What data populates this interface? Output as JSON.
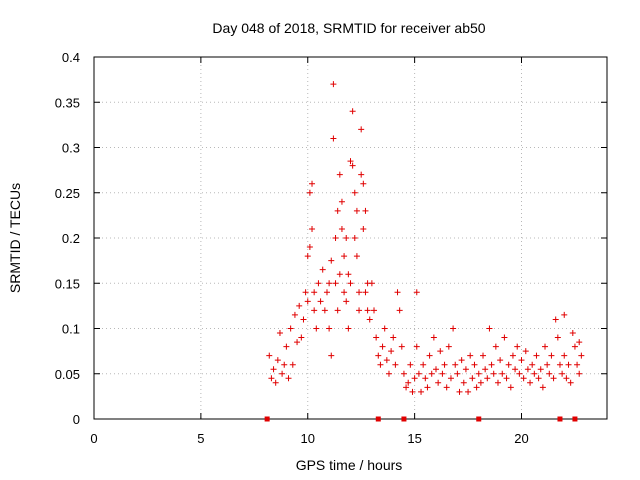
{
  "chart_data": {
    "type": "scatter",
    "title": "Day 048 of 2018, SRMTID for receiver ab50",
    "xlabel": "GPS time / hours",
    "ylabel": "SRMTID / TECUs",
    "xlim": [
      0,
      24
    ],
    "ylim": [
      0,
      0.4
    ],
    "xticks": [
      0,
      5,
      10,
      15,
      20
    ],
    "xtick_labels": [
      "0",
      "5",
      "10",
      "15",
      "20"
    ],
    "yticks": [
      0,
      0.05,
      0.1,
      0.15,
      0.2,
      0.25,
      0.3,
      0.35,
      0.4
    ],
    "ytick_labels": [
      "0",
      "0.05",
      "0.1",
      "0.15",
      "0.2",
      "0.25",
      "0.3",
      "0.35",
      "0.4"
    ],
    "grid": true,
    "marker": "+",
    "color": "#e00000",
    "baseline_markers_x": [
      8.1,
      13.3,
      14.5,
      18.0,
      21.8,
      22.5
    ],
    "series": [
      {
        "name": "SRMTID",
        "points": [
          [
            8.2,
            0.07
          ],
          [
            8.3,
            0.045
          ],
          [
            8.4,
            0.055
          ],
          [
            8.5,
            0.04
          ],
          [
            8.6,
            0.065
          ],
          [
            8.7,
            0.095
          ],
          [
            8.8,
            0.05
          ],
          [
            8.9,
            0.06
          ],
          [
            9.0,
            0.08
          ],
          [
            9.1,
            0.045
          ],
          [
            9.2,
            0.1
          ],
          [
            9.3,
            0.06
          ],
          [
            9.4,
            0.115
          ],
          [
            9.5,
            0.085
          ],
          [
            9.6,
            0.125
          ],
          [
            9.7,
            0.09
          ],
          [
            9.8,
            0.11
          ],
          [
            9.9,
            0.14
          ],
          [
            10.0,
            0.13
          ],
          [
            10.0,
            0.18
          ],
          [
            10.1,
            0.25
          ],
          [
            10.1,
            0.19
          ],
          [
            10.2,
            0.26
          ],
          [
            10.2,
            0.21
          ],
          [
            10.3,
            0.14
          ],
          [
            10.3,
            0.12
          ],
          [
            10.4,
            0.1
          ],
          [
            10.5,
            0.15
          ],
          [
            10.6,
            0.13
          ],
          [
            10.7,
            0.165
          ],
          [
            10.8,
            0.12
          ],
          [
            10.9,
            0.14
          ],
          [
            11.0,
            0.15
          ],
          [
            11.0,
            0.1
          ],
          [
            11.1,
            0.175
          ],
          [
            11.1,
            0.07
          ],
          [
            11.2,
            0.37
          ],
          [
            11.2,
            0.31
          ],
          [
            11.3,
            0.2
          ],
          [
            11.3,
            0.15
          ],
          [
            11.4,
            0.23
          ],
          [
            11.4,
            0.12
          ],
          [
            11.5,
            0.16
          ],
          [
            11.5,
            0.27
          ],
          [
            11.6,
            0.21
          ],
          [
            11.6,
            0.24
          ],
          [
            11.7,
            0.18
          ],
          [
            11.7,
            0.14
          ],
          [
            11.8,
            0.2
          ],
          [
            11.8,
            0.13
          ],
          [
            11.9,
            0.16
          ],
          [
            11.9,
            0.1
          ],
          [
            12.0,
            0.285
          ],
          [
            12.0,
            0.15
          ],
          [
            12.1,
            0.34
          ],
          [
            12.1,
            0.28
          ],
          [
            12.2,
            0.25
          ],
          [
            12.2,
            0.2
          ],
          [
            12.3,
            0.23
          ],
          [
            12.3,
            0.18
          ],
          [
            12.4,
            0.14
          ],
          [
            12.4,
            0.12
          ],
          [
            12.5,
            0.32
          ],
          [
            12.5,
            0.27
          ],
          [
            12.6,
            0.26
          ],
          [
            12.6,
            0.21
          ],
          [
            12.7,
            0.23
          ],
          [
            12.7,
            0.14
          ],
          [
            12.8,
            0.15
          ],
          [
            12.8,
            0.12
          ],
          [
            12.9,
            0.11
          ],
          [
            13.0,
            0.15
          ],
          [
            13.1,
            0.12
          ],
          [
            13.2,
            0.09
          ],
          [
            13.3,
            0.07
          ],
          [
            13.4,
            0.06
          ],
          [
            13.5,
            0.08
          ],
          [
            13.6,
            0.1
          ],
          [
            13.7,
            0.065
          ],
          [
            13.8,
            0.05
          ],
          [
            13.9,
            0.075
          ],
          [
            14.0,
            0.09
          ],
          [
            14.1,
            0.06
          ],
          [
            14.2,
            0.14
          ],
          [
            14.3,
            0.12
          ],
          [
            14.4,
            0.08
          ],
          [
            14.5,
            0.05
          ],
          [
            14.6,
            0.035
          ],
          [
            14.7,
            0.04
          ],
          [
            14.8,
            0.06
          ],
          [
            14.9,
            0.03
          ],
          [
            15.0,
            0.045
          ],
          [
            15.1,
            0.14
          ],
          [
            15.1,
            0.08
          ],
          [
            15.2,
            0.05
          ],
          [
            15.3,
            0.03
          ],
          [
            15.4,
            0.06
          ],
          [
            15.5,
            0.045
          ],
          [
            15.6,
            0.035
          ],
          [
            15.7,
            0.07
          ],
          [
            15.8,
            0.05
          ],
          [
            15.9,
            0.09
          ],
          [
            16.0,
            0.055
          ],
          [
            16.1,
            0.04
          ],
          [
            16.2,
            0.075
          ],
          [
            16.3,
            0.05
          ],
          [
            16.4,
            0.06
          ],
          [
            16.5,
            0.035
          ],
          [
            16.6,
            0.08
          ],
          [
            16.7,
            0.045
          ],
          [
            16.8,
            0.1
          ],
          [
            16.9,
            0.06
          ],
          [
            17.0,
            0.05
          ],
          [
            17.1,
            0.03
          ],
          [
            17.2,
            0.065
          ],
          [
            17.3,
            0.04
          ],
          [
            17.4,
            0.055
          ],
          [
            17.5,
            0.03
          ],
          [
            17.6,
            0.07
          ],
          [
            17.7,
            0.045
          ],
          [
            17.8,
            0.06
          ],
          [
            17.9,
            0.035
          ],
          [
            18.0,
            0.05
          ],
          [
            18.1,
            0.04
          ],
          [
            18.2,
            0.07
          ],
          [
            18.3,
            0.055
          ],
          [
            18.4,
            0.045
          ],
          [
            18.5,
            0.1
          ],
          [
            18.6,
            0.06
          ],
          [
            18.7,
            0.05
          ],
          [
            18.8,
            0.08
          ],
          [
            18.9,
            0.04
          ],
          [
            19.0,
            0.065
          ],
          [
            19.1,
            0.05
          ],
          [
            19.2,
            0.09
          ],
          [
            19.3,
            0.045
          ],
          [
            19.4,
            0.06
          ],
          [
            19.5,
            0.035
          ],
          [
            19.6,
            0.07
          ],
          [
            19.7,
            0.055
          ],
          [
            19.8,
            0.08
          ],
          [
            19.9,
            0.05
          ],
          [
            20.0,
            0.065
          ],
          [
            20.1,
            0.045
          ],
          [
            20.2,
            0.075
          ],
          [
            20.3,
            0.055
          ],
          [
            20.4,
            0.04
          ],
          [
            20.5,
            0.06
          ],
          [
            20.6,
            0.05
          ],
          [
            20.7,
            0.07
          ],
          [
            20.8,
            0.045
          ],
          [
            20.9,
            0.055
          ],
          [
            21.0,
            0.035
          ],
          [
            21.1,
            0.08
          ],
          [
            21.2,
            0.06
          ],
          [
            21.3,
            0.05
          ],
          [
            21.4,
            0.07
          ],
          [
            21.5,
            0.045
          ],
          [
            21.6,
            0.11
          ],
          [
            21.7,
            0.09
          ],
          [
            21.8,
            0.06
          ],
          [
            21.9,
            0.05
          ],
          [
            22.0,
            0.115
          ],
          [
            22.0,
            0.07
          ],
          [
            22.1,
            0.045
          ],
          [
            22.2,
            0.06
          ],
          [
            22.3,
            0.04
          ],
          [
            22.4,
            0.095
          ],
          [
            22.5,
            0.08
          ],
          [
            22.6,
            0.06
          ],
          [
            22.7,
            0.05
          ],
          [
            22.7,
            0.085
          ],
          [
            22.8,
            0.07
          ]
        ]
      }
    ]
  }
}
